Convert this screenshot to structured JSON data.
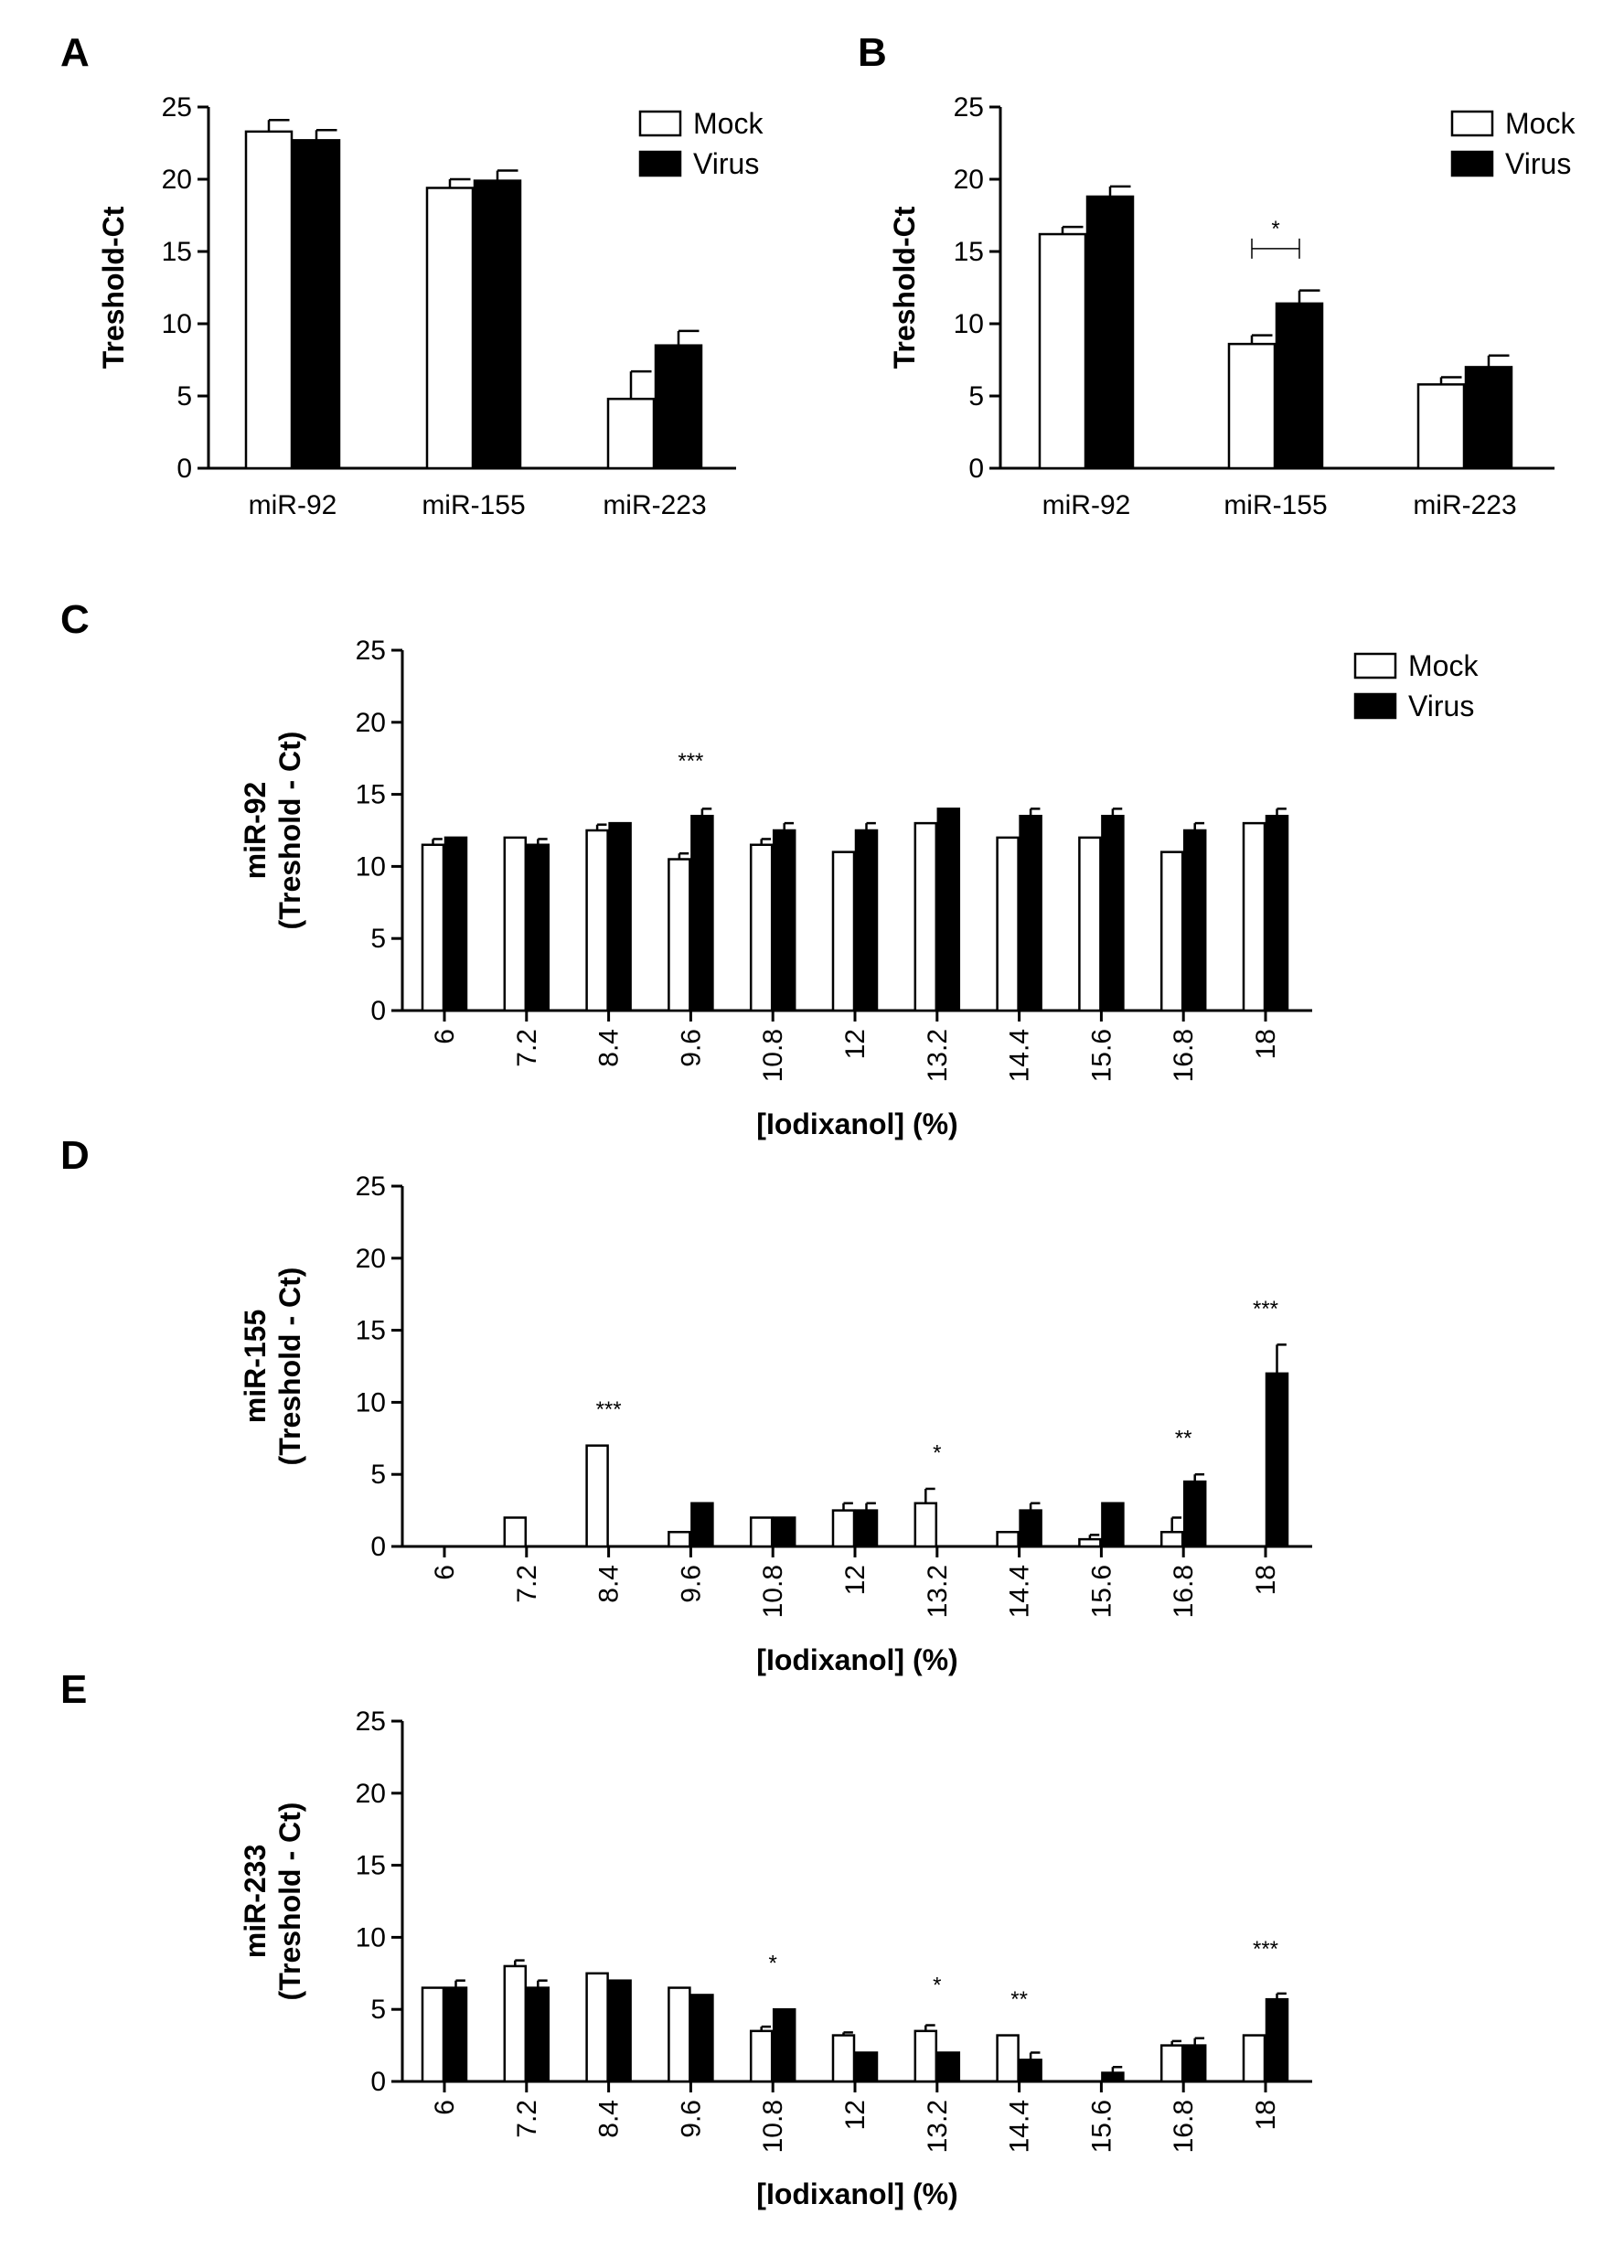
{
  "figure": {
    "series_names": [
      "Mock",
      "Virus"
    ],
    "colors": {
      "mock_fill": "#ffffff",
      "virus_fill": "#000000",
      "stroke": "#000000"
    }
  },
  "chart_data": [
    {
      "id": "A",
      "type": "bar",
      "panel_label": "A",
      "title": "",
      "xlabel": "",
      "ylabel": "Treshold-Ct",
      "ylim": [
        0,
        25
      ],
      "yticks": [
        "0",
        "5",
        "10",
        "15",
        "20",
        "25"
      ],
      "categories": [
        "miR-92",
        "miR-155",
        "miR-223"
      ],
      "series": [
        {
          "name": "Mock",
          "values": [
            23.3,
            19.4,
            4.8
          ],
          "errors": [
            0.8,
            0.6,
            1.9
          ]
        },
        {
          "name": "Virus",
          "values": [
            22.7,
            19.9,
            8.5
          ],
          "errors": [
            0.7,
            0.7,
            1.0
          ]
        }
      ],
      "legend": {
        "position": "top-right",
        "entries": [
          "Mock",
          "Virus"
        ]
      },
      "annotations": []
    },
    {
      "id": "B",
      "type": "bar",
      "panel_label": "B",
      "title": "",
      "xlabel": "",
      "ylabel": "Treshold-Ct",
      "ylim": [
        0,
        25
      ],
      "yticks": [
        "0",
        "5",
        "10",
        "15",
        "20",
        "25"
      ],
      "categories": [
        "miR-92",
        "miR-155",
        "miR-223"
      ],
      "series": [
        {
          "name": "Mock",
          "values": [
            16.2,
            8.6,
            5.8
          ],
          "errors": [
            0.5,
            0.6,
            0.5
          ]
        },
        {
          "name": "Virus",
          "values": [
            18.8,
            11.4,
            7.0
          ],
          "errors": [
            0.7,
            0.9,
            0.8
          ]
        }
      ],
      "legend": {
        "position": "top-right",
        "entries": [
          "Mock",
          "Virus"
        ]
      },
      "annotations": [
        {
          "text": "*",
          "type": "bracket",
          "category": "miR-155",
          "y": 15.2
        }
      ]
    },
    {
      "id": "C",
      "type": "bar",
      "panel_label": "C",
      "title": "",
      "xlabel": "[Iodixanol] (%)",
      "ylabel_line1": "miR-92",
      "ylabel_line2": "(Treshold - Ct)",
      "ylim": [
        0,
        25
      ],
      "yticks": [
        "0",
        "5",
        "10",
        "15",
        "20",
        "25"
      ],
      "categories": [
        "6",
        "7.2",
        "8.4",
        "9.6",
        "10.8",
        "12",
        "13.2",
        "14.4",
        "15.6",
        "16.8",
        "18"
      ],
      "series": [
        {
          "name": "Mock",
          "values": [
            11.5,
            12.0,
            12.5,
            10.5,
            11.5,
            11.0,
            13.0,
            12.0,
            12.0,
            11.0,
            13.0
          ],
          "errors": [
            0.4,
            0,
            0.4,
            0.4,
            0.4,
            0,
            0,
            0,
            0,
            0,
            0
          ]
        },
        {
          "name": "Virus",
          "values": [
            12.0,
            11.5,
            13.0,
            13.5,
            12.5,
            12.5,
            14.0,
            13.5,
            13.5,
            12.5,
            13.5
          ],
          "errors": [
            0,
            0.4,
            0,
            0.5,
            0.5,
            0.5,
            0,
            0.5,
            0.5,
            0.5,
            0.5
          ]
        }
      ],
      "legend": {
        "position": "top-right",
        "entries": [
          "Mock",
          "Virus"
        ]
      },
      "annotations": [
        {
          "text": "***",
          "category": "9.6",
          "y": 16.8
        }
      ]
    },
    {
      "id": "D",
      "type": "bar",
      "panel_label": "D",
      "title": "",
      "xlabel": "[Iodixanol] (%)",
      "ylabel_line1": "miR-155",
      "ylabel_line2": "(Treshold - Ct)",
      "ylim": [
        0,
        25
      ],
      "yticks": [
        "0",
        "5",
        "10",
        "15",
        "20",
        "25"
      ],
      "categories": [
        "6",
        "7.2",
        "8.4",
        "9.6",
        "10.8",
        "12",
        "13.2",
        "14.4",
        "15.6",
        "16.8",
        "18"
      ],
      "series": [
        {
          "name": "Mock",
          "values": [
            0,
            2.0,
            7.0,
            1.0,
            2.0,
            2.5,
            3.0,
            1.0,
            0.5,
            1.0,
            0
          ],
          "errors": [
            0,
            0,
            0,
            0,
            0,
            0.5,
            1.0,
            0,
            0.3,
            1.0,
            0
          ]
        },
        {
          "name": "Virus",
          "values": [
            0,
            0,
            0,
            3.0,
            2.0,
            2.5,
            0,
            2.5,
            3.0,
            4.5,
            12.0
          ],
          "errors": [
            0,
            0,
            0,
            0,
            0,
            0.5,
            0,
            0.5,
            0,
            0.5,
            2.0
          ]
        }
      ],
      "legend": null,
      "annotations": [
        {
          "text": "***",
          "category": "8.4",
          "y": 9.0
        },
        {
          "text": "*",
          "category": "13.2",
          "y": 6.0
        },
        {
          "text": "**",
          "category": "16.8",
          "y": 7.0
        },
        {
          "text": "***",
          "category": "18",
          "y": 16.0
        }
      ]
    },
    {
      "id": "E",
      "type": "bar",
      "panel_label": "E",
      "title": "",
      "xlabel": "[Iodixanol] (%)",
      "ylabel_line1": "miR-233",
      "ylabel_line2": "(Treshold - Ct)",
      "ylim": [
        0,
        25
      ],
      "yticks": [
        "0",
        "5",
        "10",
        "15",
        "20",
        "25"
      ],
      "categories": [
        "6",
        "7.2",
        "8.4",
        "9.6",
        "10.8",
        "12",
        "13.2",
        "14.4",
        "15.6",
        "16.8",
        "18"
      ],
      "series": [
        {
          "name": "Mock",
          "values": [
            6.5,
            8.0,
            7.5,
            6.5,
            3.5,
            3.2,
            3.5,
            3.2,
            0,
            2.5,
            3.2
          ],
          "errors": [
            0,
            0.4,
            0,
            0,
            0.3,
            0.2,
            0.4,
            0,
            0,
            0.3,
            0
          ]
        },
        {
          "name": "Virus",
          "values": [
            6.5,
            6.5,
            7.0,
            6.0,
            5.0,
            2.0,
            2.0,
            1.5,
            0.6,
            2.5,
            5.7
          ],
          "errors": [
            0.5,
            0.5,
            0,
            0,
            0,
            0,
            0,
            0.5,
            0.4,
            0.5,
            0.4
          ]
        }
      ],
      "legend": null,
      "annotations": [
        {
          "text": "*",
          "category": "10.8",
          "y": 7.7
        },
        {
          "text": "*",
          "category": "13.2",
          "y": 6.2
        },
        {
          "text": "**",
          "category": "14.4",
          "y": 5.2
        },
        {
          "text": "***",
          "category": "18",
          "y": 8.7
        }
      ]
    }
  ]
}
